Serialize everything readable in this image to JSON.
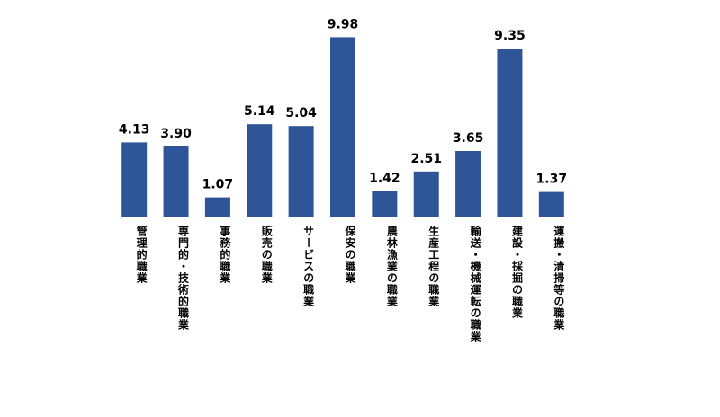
{
  "chart_data": {
    "type": "bar",
    "categories": [
      "管理的職業",
      "専門的・技術的職業",
      "事務的職業",
      "販売の職業",
      "サービスの職業",
      "保安の職業",
      "農林漁業の職業",
      "生産工程の職業",
      "輸送・機械運転の職業",
      "建設・採掘の職業",
      "運搬・清掃等の職業"
    ],
    "values": [
      4.13,
      3.9,
      1.07,
      5.14,
      5.04,
      9.98,
      1.42,
      2.51,
      3.65,
      9.35,
      1.37
    ],
    "value_labels": [
      "4.13",
      "3.90",
      "1.07",
      "5.14",
      "5.04",
      "9.98",
      "1.42",
      "2.51",
      "3.65",
      "9.35",
      "1.37"
    ],
    "title": "",
    "xlabel": "",
    "ylabel": "",
    "ylim": [
      0,
      10
    ],
    "grid": false,
    "legend": "none",
    "bar_color": "#2E5597"
  }
}
